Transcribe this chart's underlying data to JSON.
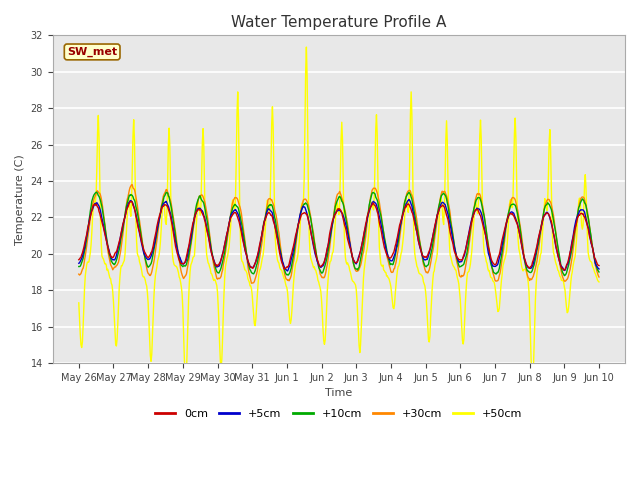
{
  "title": "Water Temperature Profile A",
  "xlabel": "Time",
  "ylabel": "Temperature (C)",
  "ylim": [
    14,
    32
  ],
  "yticks": [
    14,
    16,
    18,
    20,
    22,
    24,
    26,
    28,
    30,
    32
  ],
  "date_labels": [
    "May 26",
    "May 27",
    "May 28",
    "May 29",
    "May 30",
    "May 31",
    "Jun 1",
    "Jun 2",
    "Jun 3",
    "Jun 4",
    "Jun 5",
    "Jun 6",
    "Jun 7",
    "Jun 8",
    "Jun 9",
    "Jun 10"
  ],
  "series_colors": {
    "0cm": "#cc0000",
    "+5cm": "#0000cc",
    "+10cm": "#00aa00",
    "+30cm": "#ff8800",
    "+50cm": "#ffff00"
  },
  "series_linewidth": 1.0,
  "plot_bg_color": "#e8e8e8",
  "title_fontsize": 11,
  "label_fontsize": 8,
  "tick_fontsize": 7,
  "annotation_text": "SW_met",
  "annotation_color": "#990000",
  "annotation_bg": "#ffffcc",
  "annotation_border": "#996600",
  "legend_ncol": 5
}
